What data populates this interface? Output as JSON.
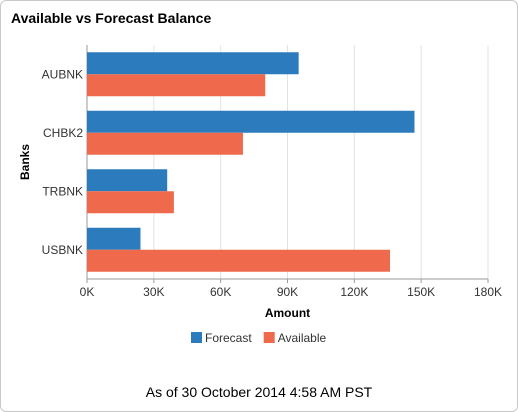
{
  "window": {
    "title": "Available vs Forecast Balance",
    "footer": "As of 30 October 2014   4:58 AM PST"
  },
  "colors": {
    "forecast": "#2b7bbd",
    "available": "#ef6a4c",
    "grid": "#e3e3e3",
    "axis": "#9a9a9a"
  },
  "chart_data": {
    "type": "bar",
    "orientation": "horizontal",
    "categories": [
      "AUBNK",
      "CHBK2",
      "TRBNK",
      "USBNK"
    ],
    "series": [
      {
        "name": "Forecast",
        "values": [
          95000,
          147000,
          36000,
          24000
        ]
      },
      {
        "name": "Available",
        "values": [
          80000,
          70000,
          39000,
          136000
        ]
      }
    ],
    "xlabel": "Amount",
    "ylabel": "Banks",
    "xlim": [
      0,
      180000
    ],
    "xticks": [
      0,
      30000,
      60000,
      90000,
      120000,
      150000,
      180000
    ],
    "xtick_labels": [
      "0K",
      "30K",
      "60K",
      "90K",
      "120K",
      "150K",
      "180K"
    ],
    "grid": true,
    "legend_placement": "bottom-center"
  }
}
